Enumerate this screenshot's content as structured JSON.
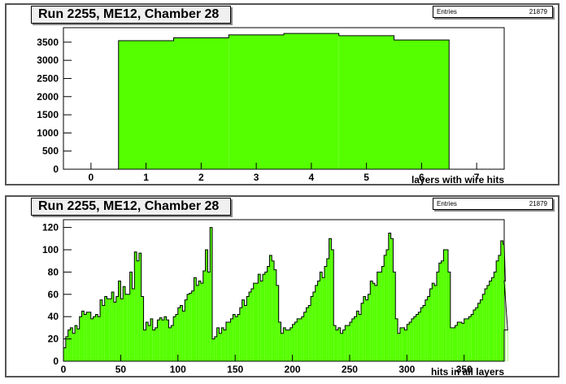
{
  "chart_data": [
    {
      "type": "bar",
      "title": "Run 2255, ME12, Chamber 28",
      "xlabel": "layers with wire hits",
      "ylabel": "",
      "stats": {
        "label": "Entries",
        "value": "21879"
      },
      "xlim": [
        -0.5,
        7.5
      ],
      "ylim": [
        0,
        3900
      ],
      "x_ticks": [
        0,
        1,
        2,
        3,
        4,
        5,
        6,
        7
      ],
      "y_ticks": [
        0,
        500,
        1000,
        1500,
        2000,
        2500,
        3000,
        3500
      ],
      "categories": [
        0,
        1,
        2,
        3,
        4,
        5,
        6,
        7
      ],
      "values": [
        0,
        3540,
        3620,
        3700,
        3740,
        3680,
        3560,
        0
      ],
      "fill_color": "#55ff00",
      "grid": false
    },
    {
      "type": "bar",
      "title": "Run 2255, ME12, Chamber 28",
      "xlabel": "hits in all layers",
      "ylabel": "",
      "stats": {
        "label": "Entries",
        "value": "21879"
      },
      "xlim": [
        0,
        385
      ],
      "ylim": [
        0,
        127
      ],
      "x_ticks": [
        0,
        50,
        100,
        150,
        200,
        250,
        300,
        350
      ],
      "y_ticks": [
        0,
        20,
        40,
        60,
        80,
        100,
        120
      ],
      "bin_width": 2,
      "values": [
        12,
        22,
        28,
        30,
        25,
        32,
        29,
        40,
        45,
        42,
        44,
        44,
        38,
        40,
        42,
        40,
        55,
        50,
        58,
        56,
        56,
        62,
        53,
        58,
        72,
        56,
        67,
        60,
        60,
        80,
        65,
        98,
        90,
        97,
        58,
        28,
        35,
        32,
        38,
        28,
        30,
        37,
        39,
        37,
        40,
        37,
        30,
        32,
        40,
        42,
        48,
        50,
        45,
        55,
        60,
        61,
        63,
        75,
        68,
        72,
        70,
        81,
        100,
        80,
        120,
        20,
        22,
        30,
        25,
        30,
        28,
        35,
        35,
        38,
        42,
        40,
        42,
        48,
        55,
        50,
        58,
        62,
        65,
        70,
        70,
        78,
        72,
        78,
        80,
        85,
        95,
        90,
        82,
        68,
        35,
        25,
        30,
        28,
        28,
        30,
        33,
        35,
        38,
        38,
        40,
        44,
        48,
        50,
        58,
        62,
        68,
        72,
        80,
        75,
        85,
        92,
        110,
        100,
        32,
        28,
        30,
        25,
        28,
        32,
        32,
        35,
        38,
        40,
        45,
        42,
        52,
        58,
        55,
        60,
        72,
        70,
        68,
        80,
        80,
        85,
        95,
        100,
        115,
        110,
        80,
        38,
        25,
        30,
        30,
        28,
        33,
        35,
        38,
        40,
        42,
        44,
        48,
        50,
        55,
        58,
        65,
        70,
        68,
        80,
        88,
        90,
        100,
        100,
        80,
        30,
        30,
        32,
        35,
        35,
        34,
        38,
        38,
        40,
        42,
        46,
        48,
        52,
        55,
        60,
        65,
        68,
        72,
        75,
        80,
        90,
        95,
        108,
        105,
        72,
        28
      ],
      "fill_color": "#55ff00",
      "grid": false
    }
  ]
}
